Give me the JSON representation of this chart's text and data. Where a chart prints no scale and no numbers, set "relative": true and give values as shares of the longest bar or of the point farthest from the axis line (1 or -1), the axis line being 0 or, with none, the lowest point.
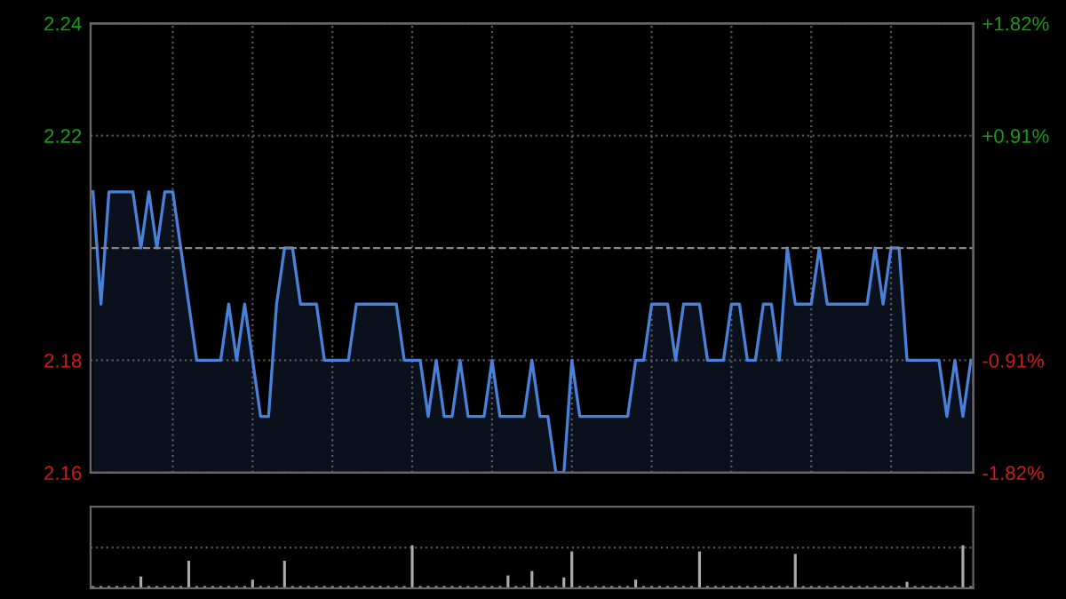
{
  "chart_data": [
    {
      "type": "area",
      "categories": [
        null,
        null,
        null,
        null,
        null,
        null,
        null,
        null,
        null,
        null,
        null,
        null,
        null,
        null,
        null,
        null,
        null,
        null,
        null,
        null,
        null,
        null,
        null,
        null,
        null,
        null,
        null,
        null,
        null,
        null,
        null,
        null,
        null,
        null,
        null,
        null,
        null,
        null,
        null,
        null,
        null,
        null,
        null,
        null,
        null,
        null,
        null,
        null,
        null,
        null,
        null,
        null,
        null,
        null,
        null,
        null,
        null,
        null,
        null,
        null,
        null,
        null,
        null,
        null,
        null,
        null,
        null,
        null,
        null,
        null,
        null,
        null,
        null,
        null,
        null,
        null,
        null,
        null,
        null,
        null,
        null,
        null,
        null,
        null,
        null,
        null,
        null,
        null,
        null,
        null,
        null,
        null,
        null,
        null,
        null,
        null,
        null,
        null,
        null,
        null,
        null,
        null,
        null,
        null,
        null,
        null,
        null,
        null,
        null,
        null,
        null
      ],
      "series": [
        {
          "color": "#4a80d8",
          "values": [
            2.21,
            2.19,
            2.21,
            2.21,
            2.21,
            2.21,
            2.2,
            2.21,
            2.2,
            2.21,
            2.21,
            2.2,
            2.19,
            2.18,
            2.18,
            2.18,
            2.18,
            2.19,
            2.18,
            2.19,
            2.18,
            2.17,
            2.17,
            2.19,
            2.2,
            2.2,
            2.19,
            2.19,
            2.19,
            2.18,
            2.18,
            2.18,
            2.18,
            2.19,
            2.19,
            2.19,
            2.19,
            2.19,
            2.19,
            2.18,
            2.18,
            2.18,
            2.17,
            2.18,
            2.17,
            2.17,
            2.18,
            2.17,
            2.17,
            2.17,
            2.18,
            2.17,
            2.17,
            2.17,
            2.17,
            2.18,
            2.17,
            2.17,
            2.16,
            2.16,
            2.18,
            2.17,
            2.17,
            2.17,
            2.17,
            2.17,
            2.17,
            2.17,
            2.18,
            2.18,
            2.19,
            2.19,
            2.19,
            2.18,
            2.19,
            2.19,
            2.19,
            2.18,
            2.18,
            2.18,
            2.19,
            2.19,
            2.18,
            2.18,
            2.19,
            2.19,
            2.18,
            2.2,
            2.19,
            2.19,
            2.19,
            2.2,
            2.19,
            2.19,
            2.19,
            2.19,
            2.19,
            2.19,
            2.2,
            2.19,
            2.2,
            2.2,
            2.18,
            2.18,
            2.18,
            2.18,
            2.18,
            2.17,
            2.18,
            2.17,
            2.18
          ]
        }
      ],
      "ylim": [
        2.16,
        2.24
      ],
      "yticks": [
        2.16,
        2.18,
        2.22,
        2.24
      ],
      "y2lim": [
        -1.82,
        1.82
      ],
      "y2ticks": [
        {
          "value": -1.82,
          "label": "-1.82%"
        },
        {
          "value": -0.91,
          "label": "-0.91%"
        },
        {
          "value": 0.91,
          "label": "+0.91%"
        },
        {
          "value": 1.82,
          "label": "+1.82%"
        }
      ],
      "ref_lines": [
        {
          "axis": "y",
          "value": 2.2,
          "color": "#888888",
          "line_style": "dashed"
        }
      ],
      "grid": true,
      "tick_labels": "y"
    },
    {
      "type": "bar",
      "relative": true,
      "grid": true,
      "tick_labels": false,
      "categories": [
        null,
        null,
        null,
        null,
        null,
        null,
        null,
        null,
        null,
        null,
        null,
        null,
        null,
        null,
        null,
        null,
        null,
        null,
        null,
        null,
        null,
        null,
        null,
        null,
        null,
        null,
        null,
        null,
        null,
        null,
        null,
        null,
        null,
        null,
        null,
        null,
        null,
        null,
        null,
        null,
        null,
        null,
        null,
        null,
        null,
        null,
        null,
        null,
        null,
        null,
        null,
        null,
        null,
        null,
        null,
        null,
        null,
        null,
        null,
        null,
        null,
        null,
        null,
        null,
        null,
        null,
        null,
        null,
        null,
        null,
        null,
        null,
        null,
        null,
        null,
        null,
        null,
        null,
        null,
        null,
        null,
        null,
        null,
        null,
        null,
        null,
        null,
        null,
        null,
        null,
        null,
        null,
        null,
        null,
        null,
        null,
        null,
        null,
        null,
        null,
        null,
        null,
        null,
        null,
        null,
        null,
        null,
        null,
        null,
        null,
        null
      ],
      "series": [
        {
          "color": "#aaaaaa",
          "values": [
            0.05,
            0.05,
            0.05,
            0.05,
            0.05,
            0.05,
            0.27,
            0.05,
            0.05,
            0.05,
            0.05,
            0.05,
            0.64,
            0.05,
            0.05,
            0.05,
            0.05,
            0.05,
            0.05,
            0.05,
            0.2,
            0.05,
            0.05,
            0.05,
            0.64,
            0.05,
            0.05,
            0.05,
            0.05,
            0.05,
            0.05,
            0.05,
            0.05,
            0.05,
            0.05,
            0.05,
            0.05,
            0.05,
            0.05,
            0.05,
            1,
            0.05,
            0.05,
            0.05,
            0.05,
            0.05,
            0.05,
            0.05,
            0.05,
            0.05,
            0.05,
            0.05,
            0.3,
            0.05,
            0.05,
            0.4,
            0.05,
            0.05,
            0.05,
            0.25,
            0.86,
            0.05,
            0.05,
            0.05,
            0.05,
            0.05,
            0.05,
            0.05,
            0.2,
            0.05,
            0.05,
            0.05,
            0.05,
            0.05,
            0.05,
            0.05,
            0.86,
            0.05,
            0.05,
            0.05,
            0.05,
            0.05,
            0.05,
            0.05,
            0.05,
            0.05,
            0.05,
            0.05,
            0.8,
            0.05,
            0.05,
            0.05,
            0.05,
            0.05,
            0.05,
            0.05,
            0.05,
            0.05,
            0.05,
            0.05,
            0.05,
            0.05,
            0.15,
            0.05,
            0.05,
            0.05,
            0.05,
            0.05,
            0.05,
            1,
            0.05
          ]
        }
      ]
    }
  ]
}
